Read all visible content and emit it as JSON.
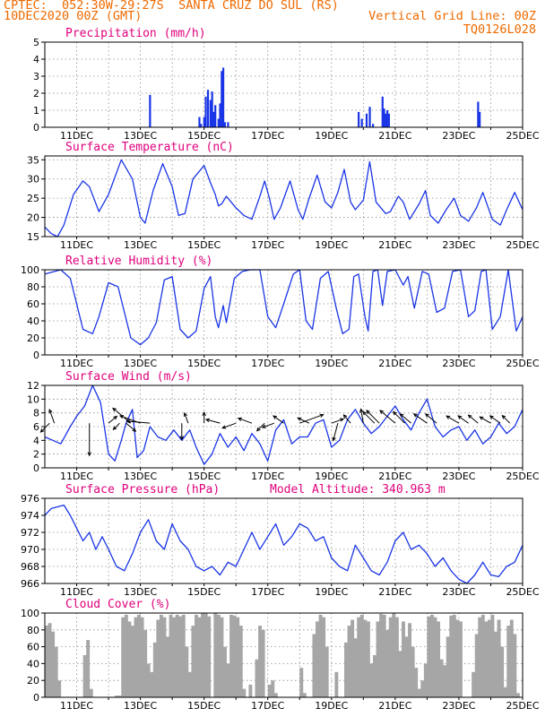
{
  "header": {
    "line1": "CPTEC:  052:30W-29:27S  SANTA CRUZ DO SUL (RS)",
    "line2": "10DEC2020 00Z (GMT)",
    "grid_note": "Vertical Grid Line: 00Z",
    "code": "TQ0126L028"
  },
  "x_axis": {
    "start_day": 10,
    "end_day": 25,
    "tick_labels": [
      "11DEC",
      "13DEC",
      "15DEC",
      "17DEC",
      "19DEC",
      "21DEC",
      "23DEC",
      "25DEC"
    ],
    "tick_days": [
      11,
      13,
      15,
      17,
      19,
      21,
      23,
      25
    ]
  },
  "colors": {
    "line": "#1a35e6",
    "bars": "#1a35e6",
    "cloud": "#a6a6a6",
    "title": "#e0007c",
    "header": "#ee6a00"
  },
  "chart_data": [
    {
      "type": "bar",
      "title": "Precipitation (mm/h)",
      "ylim": [
        0,
        5
      ],
      "yticks": [
        0,
        1,
        2,
        3,
        4,
        5
      ],
      "x": [
        13.3,
        14.85,
        14.9,
        15.0,
        15.05,
        15.12,
        15.2,
        15.25,
        15.3,
        15.35,
        15.45,
        15.5,
        15.55,
        15.6,
        15.65,
        15.75,
        19.85,
        19.95,
        20.1,
        20.2,
        20.3,
        20.6,
        20.65,
        20.7,
        20.75,
        20.8,
        23.6,
        23.65
      ],
      "values": [
        1.9,
        0.6,
        0.2,
        0.6,
        1.8,
        2.2,
        1.6,
        2.1,
        0.9,
        1.3,
        0.5,
        1.4,
        3.3,
        3.5,
        0.3,
        0.3,
        0.9,
        0.5,
        0.8,
        1.2,
        0.2,
        1.8,
        1.1,
        0.8,
        1.0,
        0.8,
        1.5,
        0.9
      ]
    },
    {
      "type": "line",
      "title": "Surface Temperature (nC)",
      "ylim": [
        15,
        36
      ],
      "yticks": [
        15,
        20,
        25,
        30,
        35
      ],
      "x": [
        10.0,
        10.2,
        10.4,
        10.6,
        10.9,
        11.2,
        11.4,
        11.7,
        12.0,
        12.4,
        12.75,
        13.0,
        13.15,
        13.4,
        13.7,
        14.0,
        14.2,
        14.4,
        14.65,
        15.0,
        15.2,
        15.35,
        15.45,
        15.55,
        15.7,
        16.0,
        16.25,
        16.5,
        16.75,
        16.9,
        17.05,
        17.2,
        17.4,
        17.7,
        17.95,
        18.1,
        18.3,
        18.55,
        18.8,
        19.0,
        19.2,
        19.4,
        19.6,
        19.75,
        20.0,
        20.2,
        20.4,
        20.55,
        20.7,
        20.85,
        21.1,
        21.25,
        21.45,
        21.75,
        21.95,
        22.1,
        22.35,
        22.6,
        22.85,
        23.05,
        23.3,
        23.55,
        23.75,
        24.05,
        24.3,
        24.5,
        24.75,
        25.0
      ],
      "values": [
        17.5,
        15.8,
        15.0,
        18.0,
        26.0,
        29.5,
        28.0,
        21.5,
        26.0,
        35.0,
        30.0,
        20.0,
        18.5,
        27.0,
        34.0,
        28.0,
        20.5,
        21.0,
        30.0,
        33.5,
        29.0,
        26.0,
        23.0,
        23.5,
        25.5,
        22.5,
        20.5,
        19.5,
        25.5,
        29.5,
        25.0,
        19.5,
        22.5,
        29.5,
        22.0,
        19.5,
        25.0,
        31.0,
        24.0,
        22.5,
        26.5,
        32.5,
        24.0,
        22.0,
        24.5,
        34.5,
        24.0,
        22.5,
        21.0,
        21.5,
        25.5,
        24.0,
        19.5,
        23.5,
        27.0,
        20.5,
        18.5,
        22.0,
        25.0,
        20.5,
        19.0,
        22.5,
        26.5,
        19.5,
        18.0,
        22.0,
        26.5,
        22.0
      ]
    },
    {
      "type": "line",
      "title": "Relative Humidity (%)",
      "ylim": [
        0,
        100
      ],
      "yticks": [
        0,
        20,
        40,
        60,
        80,
        100
      ],
      "x": [
        10.0,
        10.5,
        10.8,
        11.0,
        11.2,
        11.5,
        11.7,
        12.0,
        12.3,
        12.7,
        13.0,
        13.25,
        13.5,
        13.75,
        14.0,
        14.25,
        14.5,
        14.75,
        15.0,
        15.2,
        15.35,
        15.45,
        15.6,
        15.7,
        15.95,
        16.2,
        16.45,
        16.75,
        17.0,
        17.25,
        17.5,
        17.8,
        18.0,
        18.2,
        18.4,
        18.65,
        18.9,
        19.15,
        19.35,
        19.55,
        19.7,
        19.85,
        20.05,
        20.15,
        20.3,
        20.45,
        20.6,
        20.75,
        21.0,
        21.25,
        21.4,
        21.6,
        21.85,
        22.05,
        22.3,
        22.55,
        22.8,
        23.05,
        23.3,
        23.5,
        23.7,
        23.85,
        24.05,
        24.3,
        24.55,
        24.8,
        25.0
      ],
      "values": [
        95,
        100,
        90,
        60,
        30,
        25,
        45,
        85,
        80,
        20,
        12,
        20,
        38,
        88,
        92,
        30,
        20,
        28,
        78,
        92,
        45,
        32,
        58,
        38,
        90,
        98,
        100,
        100,
        45,
        32,
        60,
        95,
        100,
        40,
        30,
        90,
        98,
        55,
        25,
        30,
        92,
        95,
        45,
        28,
        98,
        100,
        58,
        98,
        100,
        82,
        92,
        55,
        98,
        95,
        50,
        55,
        98,
        100,
        45,
        52,
        98,
        100,
        30,
        45,
        100,
        28,
        45
      ]
    },
    {
      "type": "line",
      "title": "Surface Wind (m/s)",
      "ylim": [
        0,
        12
      ],
      "yticks": [
        0,
        2,
        4,
        6,
        8,
        10,
        12
      ],
      "x": [
        10.0,
        10.25,
        10.5,
        10.8,
        11.0,
        11.25,
        11.5,
        11.75,
        12.0,
        12.2,
        12.4,
        12.55,
        12.75,
        12.9,
        13.1,
        13.3,
        13.55,
        13.8,
        14.05,
        14.3,
        14.55,
        14.75,
        15.0,
        15.25,
        15.5,
        15.75,
        16.0,
        16.25,
        16.5,
        16.75,
        17.0,
        17.25,
        17.5,
        17.75,
        18.0,
        18.25,
        18.5,
        18.75,
        19.0,
        19.25,
        19.5,
        19.75,
        20.0,
        20.25,
        20.5,
        20.75,
        21.0,
        21.25,
        21.5,
        21.75,
        22.0,
        22.25,
        22.5,
        22.75,
        23.0,
        23.25,
        23.5,
        23.75,
        24.0,
        24.25,
        24.5,
        24.75,
        25.0
      ],
      "values": [
        4.5,
        4.0,
        3.5,
        6.0,
        7.5,
        9.0,
        12.0,
        9.5,
        2.0,
        1.0,
        4.0,
        6.5,
        8.5,
        1.5,
        2.5,
        6.0,
        4.5,
        4.0,
        5.5,
        4.0,
        5.5,
        3.0,
        0.5,
        2.0,
        5.0,
        3.0,
        4.5,
        2.5,
        5.0,
        3.5,
        1.0,
        5.5,
        7.0,
        3.5,
        4.5,
        4.5,
        6.5,
        7.0,
        3.0,
        4.0,
        7.0,
        8.5,
        6.5,
        5.0,
        6.0,
        7.5,
        9.0,
        7.0,
        5.5,
        8.0,
        10.0,
        6.0,
        4.5,
        5.5,
        6.0,
        4.0,
        5.5,
        3.5,
        4.5,
        6.5,
        5.0,
        6.0,
        8.5
      ]
    },
    {
      "type": "line",
      "title": "Surface Pressure (hPa)",
      "subtitle": "Model Altitude: 340.963 m",
      "ylim": [
        966,
        976
      ],
      "yticks": [
        966,
        968,
        970,
        972,
        974,
        976
      ],
      "x": [
        10.0,
        10.2,
        10.4,
        10.6,
        10.8,
        11.0,
        11.2,
        11.4,
        11.6,
        11.8,
        12.0,
        12.25,
        12.5,
        12.75,
        13.0,
        13.25,
        13.5,
        13.75,
        14.0,
        14.25,
        14.5,
        14.75,
        15.0,
        15.25,
        15.5,
        15.75,
        16.0,
        16.25,
        16.5,
        16.75,
        17.0,
        17.25,
        17.5,
        17.75,
        18.0,
        18.25,
        18.5,
        18.75,
        19.0,
        19.25,
        19.5,
        19.75,
        20.0,
        20.25,
        20.5,
        20.75,
        21.0,
        21.25,
        21.5,
        21.75,
        22.0,
        22.25,
        22.5,
        22.75,
        23.0,
        23.25,
        23.5,
        23.75,
        24.0,
        24.25,
        24.5,
        24.75,
        25.0
      ],
      "values": [
        974.0,
        974.8,
        975.0,
        975.2,
        974.0,
        972.5,
        971.0,
        972.0,
        970.0,
        971.5,
        970.0,
        968.0,
        967.5,
        969.5,
        972.0,
        973.5,
        971.0,
        970.0,
        973.0,
        971.0,
        970.0,
        968.0,
        967.5,
        968.0,
        967.0,
        968.5,
        968.0,
        970.0,
        972.0,
        970.0,
        971.5,
        973.0,
        970.5,
        971.5,
        973.0,
        972.5,
        971.0,
        971.5,
        969.0,
        968.0,
        967.5,
        970.5,
        969.0,
        967.5,
        967.0,
        968.5,
        971.0,
        972.0,
        970.0,
        970.5,
        969.5,
        968.0,
        969.0,
        967.5,
        966.5,
        966.0,
        967.0,
        968.5,
        967.0,
        966.8,
        968.0,
        968.5,
        970.5
      ]
    },
    {
      "type": "area",
      "title": "Cloud Cover (%)",
      "ylim": [
        0,
        100
      ],
      "yticks": [
        0,
        20,
        40,
        60,
        80,
        100
      ],
      "x": [
        10.0,
        10.1,
        10.2,
        10.3,
        10.4,
        10.5,
        10.6,
        10.7,
        10.8,
        10.9,
        11.0,
        11.1,
        11.2,
        11.3,
        11.4,
        11.5,
        11.6,
        11.7,
        11.8,
        11.9,
        12.0,
        12.1,
        12.2,
        12.3,
        12.4,
        12.5,
        12.6,
        12.7,
        12.8,
        12.9,
        13.0,
        13.1,
        13.2,
        13.3,
        13.4,
        13.5,
        13.6,
        13.7,
        13.8,
        13.9,
        14.0,
        14.1,
        14.2,
        14.3,
        14.4,
        14.5,
        14.6,
        14.7,
        14.8,
        14.9,
        15.0,
        15.1,
        15.2,
        15.3,
        15.4,
        15.5,
        15.6,
        15.7,
        15.8,
        15.9,
        16.0,
        16.1,
        16.2,
        16.3,
        16.4,
        16.5,
        16.6,
        16.7,
        16.8,
        16.9,
        17.0,
        17.1,
        17.2,
        17.3,
        17.4,
        17.5,
        17.6,
        17.7,
        17.8,
        17.9,
        18.0,
        18.1,
        18.2,
        18.3,
        18.4,
        18.5,
        18.6,
        18.7,
        18.8,
        18.9,
        19.0,
        19.1,
        19.2,
        19.3,
        19.4,
        19.5,
        19.6,
        19.7,
        19.8,
        19.9,
        20.0,
        20.1,
        20.2,
        20.3,
        20.4,
        20.5,
        20.6,
        20.7,
        20.8,
        20.9,
        21.0,
        21.1,
        21.2,
        21.3,
        21.4,
        21.5,
        21.6,
        21.7,
        21.8,
        21.9,
        22.0,
        22.1,
        22.2,
        22.3,
        22.4,
        22.5,
        22.6,
        22.7,
        22.8,
        22.9,
        23.0,
        23.1,
        23.2,
        23.3,
        23.4,
        23.5,
        23.6,
        23.7,
        23.8,
        23.9,
        24.0,
        24.1,
        24.2,
        24.3,
        24.4,
        24.5,
        24.6,
        24.7,
        24.8,
        24.9
      ],
      "values": [
        85,
        88,
        78,
        60,
        20,
        0,
        0,
        0,
        0,
        0,
        0,
        0,
        50,
        68,
        10,
        0,
        0,
        0,
        0,
        0,
        0,
        0,
        2,
        2,
        95,
        98,
        90,
        85,
        95,
        98,
        95,
        80,
        40,
        30,
        65,
        92,
        98,
        95,
        72,
        98,
        95,
        98,
        96,
        98,
        60,
        30,
        85,
        98,
        95,
        100,
        100,
        96,
        0,
        100,
        98,
        95,
        60,
        40,
        98,
        97,
        95,
        85,
        10,
        0,
        15,
        0,
        45,
        85,
        80,
        0,
        15,
        20,
        5,
        0,
        0,
        0,
        0,
        0,
        0,
        0,
        35,
        5,
        0,
        0,
        75,
        90,
        98,
        95,
        60,
        0,
        0,
        30,
        0,
        0,
        65,
        85,
        92,
        70,
        95,
        98,
        92,
        90,
        40,
        50,
        90,
        99,
        98,
        80,
        95,
        100,
        95,
        55,
        90,
        72,
        88,
        60,
        35,
        10,
        20,
        40,
        96,
        98,
        95,
        90,
        45,
        38,
        72,
        97,
        98,
        92,
        90,
        0,
        0,
        0,
        30,
        75,
        95,
        98,
        90,
        92,
        98,
        78,
        92,
        60,
        12,
        85,
        92,
        75,
        5,
        0
      ]
    }
  ],
  "wind_arrows": [
    {
      "day": 10.15,
      "dir": 225,
      "len": 14
    },
    {
      "day": 10.3,
      "dir": 110,
      "len": 16
    },
    {
      "day": 11.4,
      "dir": 270,
      "len": 36
    },
    {
      "day": 12.0,
      "dir": 40,
      "len": 12
    },
    {
      "day": 12.35,
      "dir": 225,
      "len": 10
    },
    {
      "day": 12.55,
      "dir": 320,
      "len": 14
    },
    {
      "day": 12.7,
      "dir": 140,
      "len": 26
    },
    {
      "day": 13.0,
      "dir": 160,
      "len": 24
    },
    {
      "day": 13.3,
      "dir": 175,
      "len": 26
    },
    {
      "day": 14.3,
      "dir": 270,
      "len": 18
    },
    {
      "day": 14.5,
      "dir": 110,
      "len": 12
    },
    {
      "day": 15.0,
      "dir": 90,
      "len": 12
    },
    {
      "day": 15.5,
      "dir": 165,
      "len": 16
    },
    {
      "day": 16.0,
      "dir": 200,
      "len": 16
    },
    {
      "day": 16.5,
      "dir": 160,
      "len": 16
    },
    {
      "day": 16.9,
      "dir": 225,
      "len": 12
    },
    {
      "day": 17.2,
      "dir": 200,
      "len": 14
    },
    {
      "day": 17.5,
      "dir": 145,
      "len": 14
    },
    {
      "day": 18.0,
      "dir": 20,
      "len": 28
    },
    {
      "day": 18.3,
      "dir": 155,
      "len": 14
    },
    {
      "day": 19.0,
      "dir": 20,
      "len": 14
    },
    {
      "day": 19.2,
      "dir": 255,
      "len": 20
    },
    {
      "day": 19.6,
      "dir": 130,
      "len": 12
    },
    {
      "day": 20.0,
      "dir": 100,
      "len": 16
    },
    {
      "day": 20.35,
      "dir": 135,
      "len": 18
    },
    {
      "day": 20.5,
      "dir": 135,
      "len": 20
    },
    {
      "day": 21.0,
      "dir": 140,
      "len": 22
    },
    {
      "day": 21.3,
      "dir": 135,
      "len": 18
    },
    {
      "day": 21.5,
      "dir": 140,
      "len": 16
    },
    {
      "day": 22.0,
      "dir": 145,
      "len": 18
    },
    {
      "day": 22.3,
      "dir": 140,
      "len": 16
    },
    {
      "day": 23.0,
      "dir": 150,
      "len": 16
    },
    {
      "day": 23.3,
      "dir": 145,
      "len": 14
    },
    {
      "day": 23.6,
      "dir": 140,
      "len": 14
    },
    {
      "day": 24.0,
      "dir": 150,
      "len": 14
    },
    {
      "day": 24.3,
      "dir": 145,
      "len": 14
    },
    {
      "day": 24.6,
      "dir": 135,
      "len": 12
    }
  ]
}
